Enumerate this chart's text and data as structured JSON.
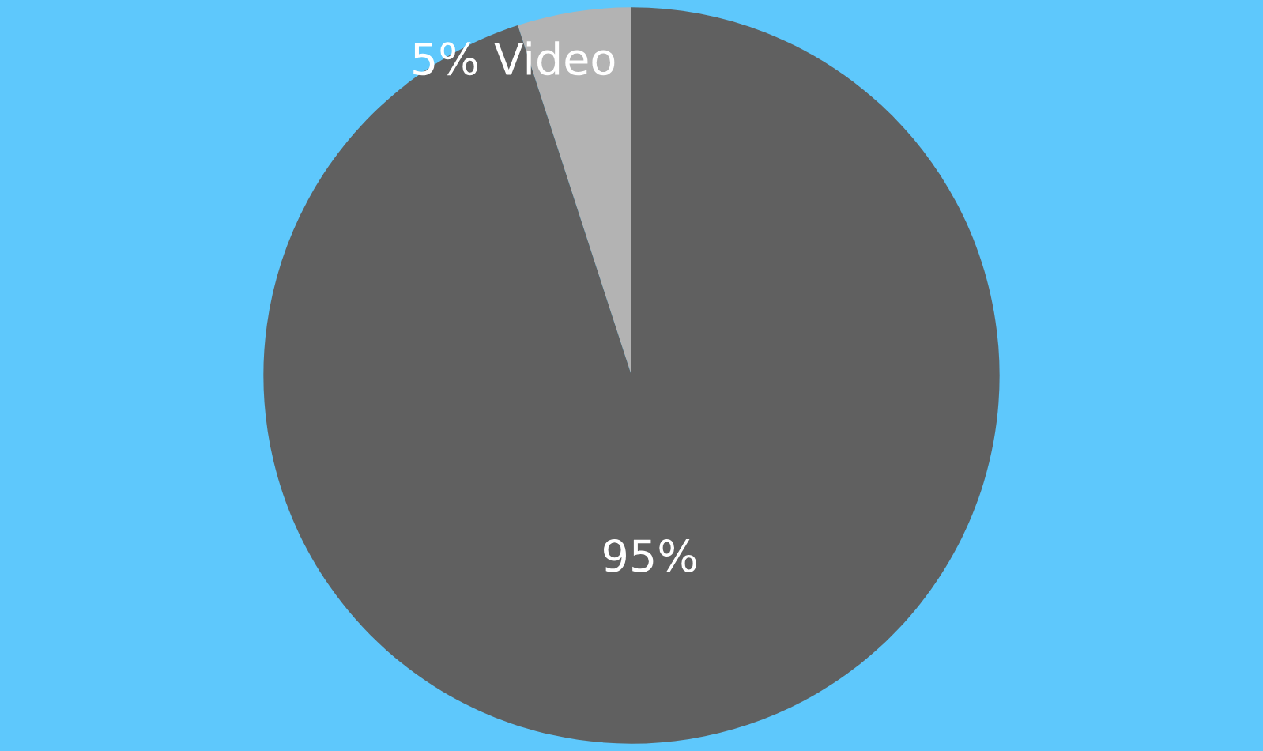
{
  "chart_data": {
    "type": "pie",
    "categories": [
      "Video",
      null
    ],
    "values": [
      5,
      95
    ],
    "value_labels": [
      "5%",
      "95%"
    ],
    "colors": [
      "#b3b3b3",
      "#606060"
    ],
    "legend": false
  }
}
